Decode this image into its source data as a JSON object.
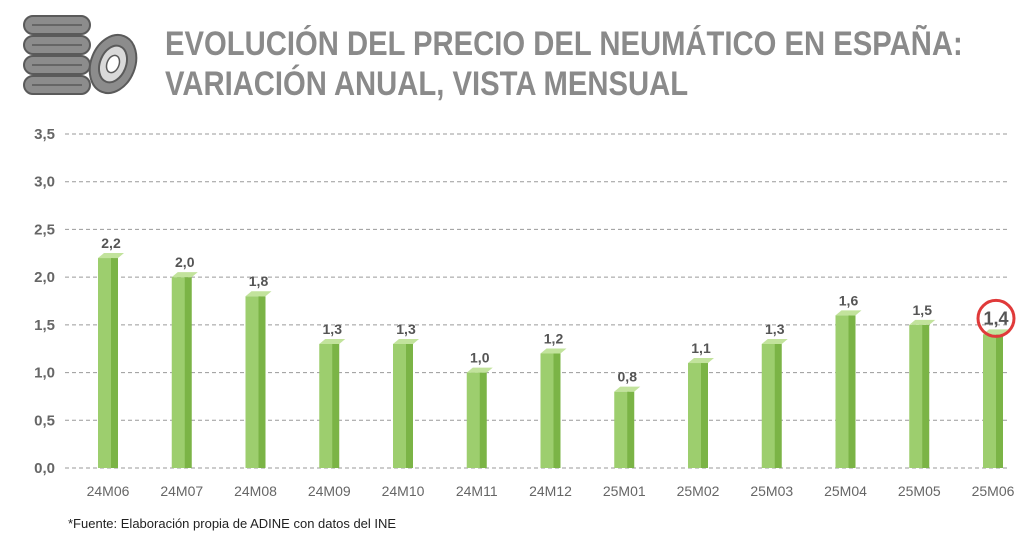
{
  "title": {
    "line1": "EVOLUCIÓN DEL PRECIO DEL NEUMÁTICO EN ESPAÑA:",
    "line2": "VARIACIÓN ANUAL, VISTA MENSUAL"
  },
  "logo": {
    "icon": "tire-stack-icon"
  },
  "footnote": "*Fuente: Elaboración propia de ADINE con datos del INE",
  "colors": {
    "bar_front": "#9dce6e",
    "bar_side": "#7bb446",
    "bar_top": "#c2e39c",
    "axis_text": "#666666",
    "label_text": "#555555",
    "grid": "#9a9a9a",
    "highlight_circle": "#e03a3a"
  },
  "chart_data": {
    "type": "bar",
    "categories": [
      "24M06",
      "24M07",
      "24M08",
      "24M09",
      "24M10",
      "24M11",
      "24M12",
      "25M01",
      "25M02",
      "25M03",
      "25M04",
      "25M05",
      "25M06"
    ],
    "values": [
      2.2,
      2.0,
      1.8,
      1.3,
      1.3,
      1.0,
      1.2,
      0.8,
      1.1,
      1.3,
      1.6,
      1.5,
      1.4
    ],
    "value_labels": [
      "2,2",
      "2,0",
      "1,8",
      "1,3",
      "1,3",
      "1,0",
      "1,2",
      "0,8",
      "1,1",
      "1,3",
      "1,6",
      "1,5",
      "1,4"
    ],
    "y_ticks": [
      "0,0",
      "0,5",
      "1,0",
      "1,5",
      "2,0",
      "2,5",
      "3,0",
      "3,5"
    ],
    "ylim": [
      0,
      3.5
    ],
    "grid": true,
    "highlighted_category": "25M06",
    "title": "EVOLUCIÓN DEL PRECIO DEL NEUMÁTICO EN ESPAÑA: VARIACIÓN ANUAL, VISTA MENSUAL",
    "xlabel": "",
    "ylabel": ""
  }
}
